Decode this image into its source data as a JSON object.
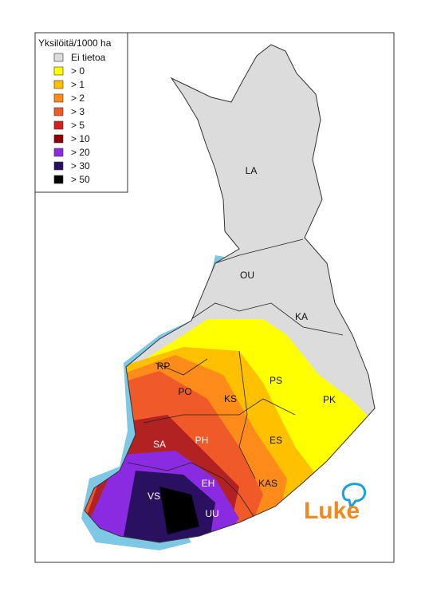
{
  "legend": {
    "title": "Yksilöitä/1000 ha",
    "items": [
      {
        "label": "Ei tietoa",
        "color": "#dcdcdc"
      },
      {
        "label": "> 0",
        "color": "#ffff00"
      },
      {
        "label": "> 1",
        "color": "#ffc000"
      },
      {
        "label": "> 2",
        "color": "#ff8c1a"
      },
      {
        "label": "> 3",
        "color": "#f05a28"
      },
      {
        "label": "> 5",
        "color": "#d42020"
      },
      {
        "label": "> 10",
        "color": "#8b0000"
      },
      {
        "label": "> 20",
        "color": "#8a2be2"
      },
      {
        "label": "> 30",
        "color": "#2a1060"
      },
      {
        "label": "> 50",
        "color": "#000000"
      }
    ]
  },
  "regions": [
    "LA",
    "OU",
    "KA",
    "RP",
    "PO",
    "KS",
    "PS",
    "PK",
    "SA",
    "PH",
    "ES",
    "EH",
    "KAS",
    "VS",
    "UU"
  ],
  "logo": "Luke"
}
